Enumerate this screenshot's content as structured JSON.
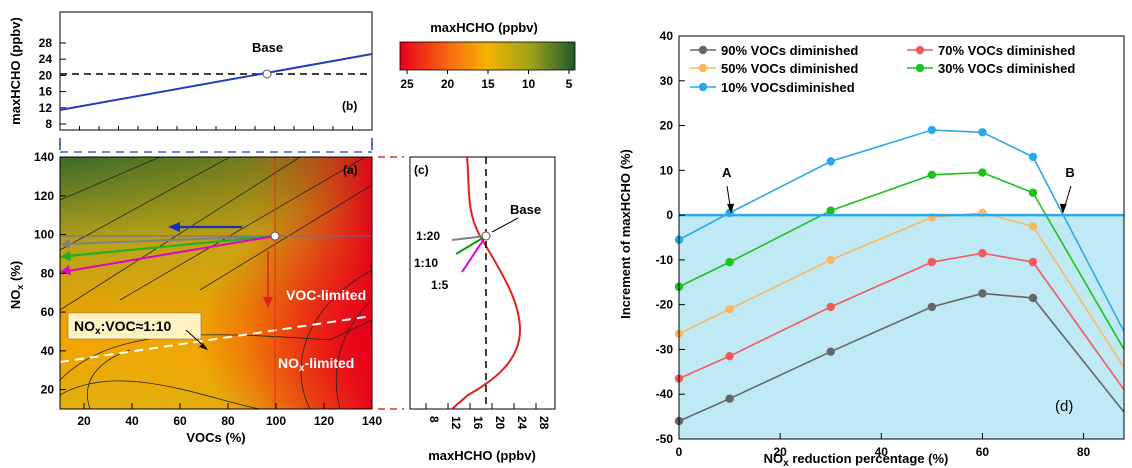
{
  "panel_b": {
    "label": "(b)",
    "ylabel": "maxHCHO (ppbv)",
    "yticks": [
      "8",
      "12",
      "16",
      "20",
      "24",
      "28"
    ],
    "base_label": "Base"
  },
  "colorbar": {
    "title": "maxHCHO (ppbv)",
    "ticks": [
      "25",
      "20",
      "15",
      "10",
      "5"
    ]
  },
  "panel_a": {
    "label": "(a)",
    "xlabel": "VOCs (%)",
    "ylabel": "NO",
    "ylabel_sub": "x",
    "ylabel_tail": " (%)",
    "xticks": [
      "20",
      "40",
      "60",
      "80",
      "100",
      "120",
      "140"
    ],
    "yticks": [
      "20",
      "40",
      "60",
      "80",
      "100",
      "120",
      "140"
    ],
    "voc_limited": "VOC-limited",
    "nox_limited_main": "NO",
    "nox_limited_sub": "x",
    "nox_limited_tail": "-limited",
    "ratio_main": "NO",
    "ratio_sub": "x",
    "ratio_tail": ":VOC≈1:10"
  },
  "panel_c": {
    "label": "(c)",
    "xlabel": "maxHCHO (ppbv)",
    "xticks": [
      "8",
      "12",
      "16",
      "20",
      "24",
      "28"
    ],
    "base_label": "Base",
    "r1": "1:20",
    "r2": "1:10",
    "r3": "1:5",
    "c1": "#808080",
    "c2": "#00a000",
    "c3": "#e000e0"
  },
  "chart_data": {
    "type": "line",
    "title": "",
    "xlabel": "NOx reduction percentage (%)",
    "xlabel_main": "NO",
    "xlabel_sub": "x",
    "xlabel_tail": " reduction percentage (%)",
    "ylabel": "Increment of maxHCHO (%)",
    "x": [
      0,
      10,
      30,
      50,
      60,
      70,
      88
    ],
    "xlim": [
      0,
      88
    ],
    "ylim": [
      -50,
      40
    ],
    "xticks": [
      0,
      20,
      40,
      60,
      80
    ],
    "yticks": [
      -50,
      -40,
      -30,
      -20,
      -10,
      0,
      10,
      20,
      30,
      40
    ],
    "panel_label": "(d)",
    "annotations": [
      "A",
      "B"
    ],
    "legend_position": "top-left",
    "series": [
      {
        "name": "90% VOCs diminished",
        "color": "#666666",
        "values": [
          -46,
          -41,
          -30.5,
          -20.5,
          -17.5,
          -18.5,
          -44
        ]
      },
      {
        "name": "70% VOCs diminished",
        "color": "#f05a5a",
        "values": [
          -36.5,
          -31.5,
          -20.5,
          -10.5,
          -8.5,
          -10.5,
          -39
        ]
      },
      {
        "name": "50% VOCs diminished",
        "color": "#f9b85c",
        "values": [
          -26.5,
          -21,
          -10,
          -0.5,
          0.5,
          -2.5,
          -34
        ]
      },
      {
        "name": "30% VOCs diminished",
        "color": "#1ec21e",
        "values": [
          -16,
          -10.5,
          1,
          9,
          9.5,
          5,
          -30
        ]
      },
      {
        "name": "10% VOCsdiminished",
        "color": "#2aa9ea",
        "values": [
          -5.5,
          0.5,
          12,
          19,
          18.5,
          13,
          -26
        ]
      }
    ]
  }
}
